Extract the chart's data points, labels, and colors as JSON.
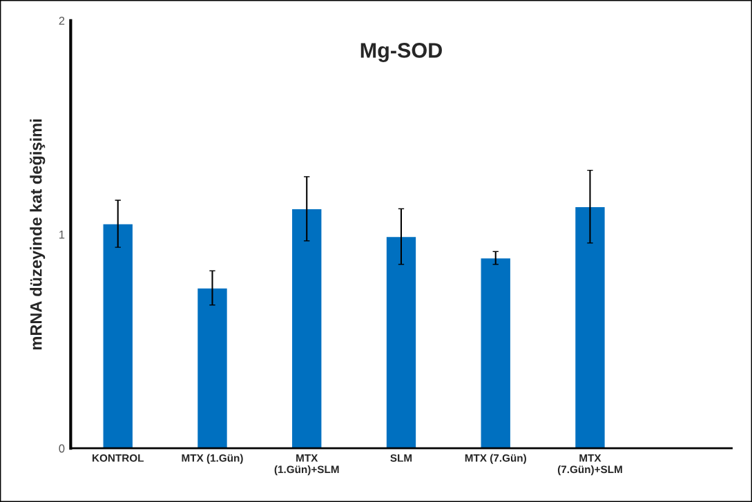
{
  "chart_data": {
    "type": "bar",
    "title": "Mg-SOD",
    "ylabel": "mRNA düzeyinde kat değişimi",
    "categories": [
      "KONTROL",
      "MTX (1.Gün)",
      "MTX\n(1.Gün)+SLM",
      "SLM",
      "MTX (7.Gün)",
      "MTX\n(7.Gün)+SLM",
      null
    ],
    "values": [
      1.05,
      0.75,
      1.12,
      0.99,
      0.89,
      1.13,
      null
    ],
    "errors": [
      0.11,
      0.08,
      0.15,
      0.13,
      0.03,
      0.17,
      null
    ],
    "color": "#0070c0",
    "ylim": [
      0,
      2
    ],
    "yticks": [
      0,
      1,
      2
    ],
    "grid": false
  }
}
